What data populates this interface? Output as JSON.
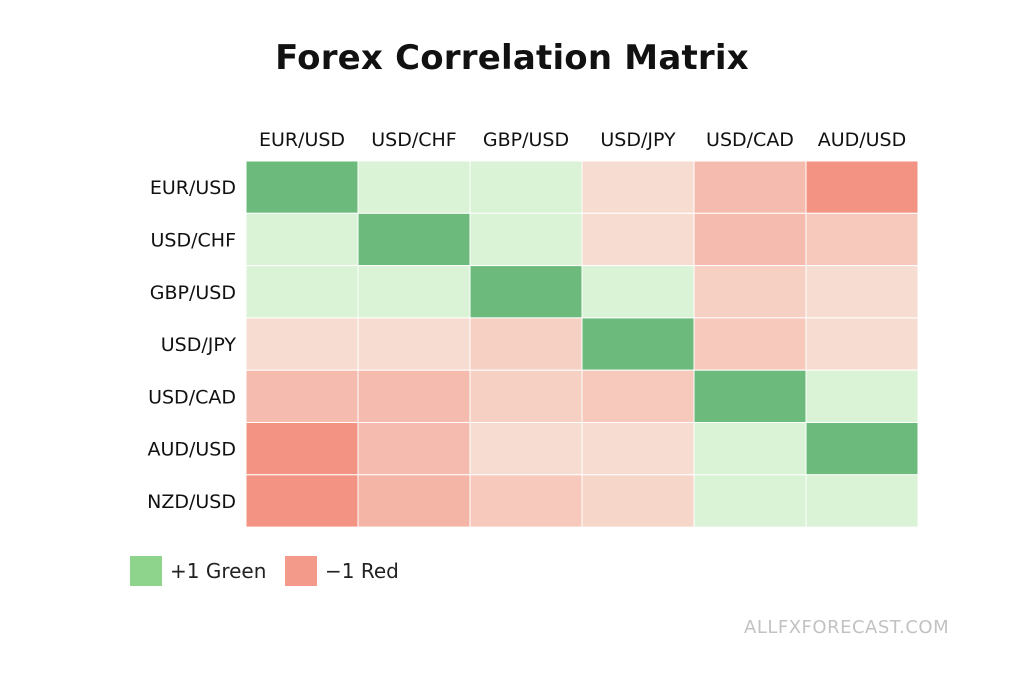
{
  "chart_data": {
    "type": "heatmap",
    "title": "Forex Correlation Matrix",
    "columns": [
      "EUR/USD",
      "USD/CHF",
      "GBP/USD",
      "USD/JPY",
      "USD/CAD",
      "AUD/USD"
    ],
    "rows": [
      "EUR/USD",
      "USD/CHF",
      "GBP/USD",
      "USD/JPY",
      "USD/CAD",
      "AUD/USD",
      "NZD/USD"
    ],
    "values": [
      [
        1.0,
        0.2,
        0.2,
        -0.2,
        -0.45,
        -0.75
      ],
      [
        0.2,
        1.0,
        0.2,
        -0.2,
        -0.45,
        -0.35
      ],
      [
        0.2,
        0.2,
        1.0,
        0.2,
        -0.3,
        -0.2
      ],
      [
        -0.2,
        -0.2,
        -0.3,
        1.0,
        -0.35,
        -0.2
      ],
      [
        -0.45,
        -0.45,
        -0.3,
        -0.35,
        1.0,
        0.2
      ],
      [
        -0.75,
        -0.45,
        -0.2,
        -0.2,
        0.2,
        1.0
      ],
      [
        -0.75,
        -0.5,
        -0.35,
        -0.25,
        0.2,
        0.2
      ]
    ],
    "color_scale": {
      "positive_max": "#6cbb7d",
      "positive_light": "#daf2d5",
      "negative_light": "#f7ddd1",
      "negative_max": "#f39383"
    },
    "legend": [
      {
        "label": "+1 Green",
        "color": "#8fd48d"
      },
      {
        "label": "−1 Red",
        "color": "#f39a8a"
      }
    ]
  },
  "watermark": "ALLFXFORECAST.COM"
}
